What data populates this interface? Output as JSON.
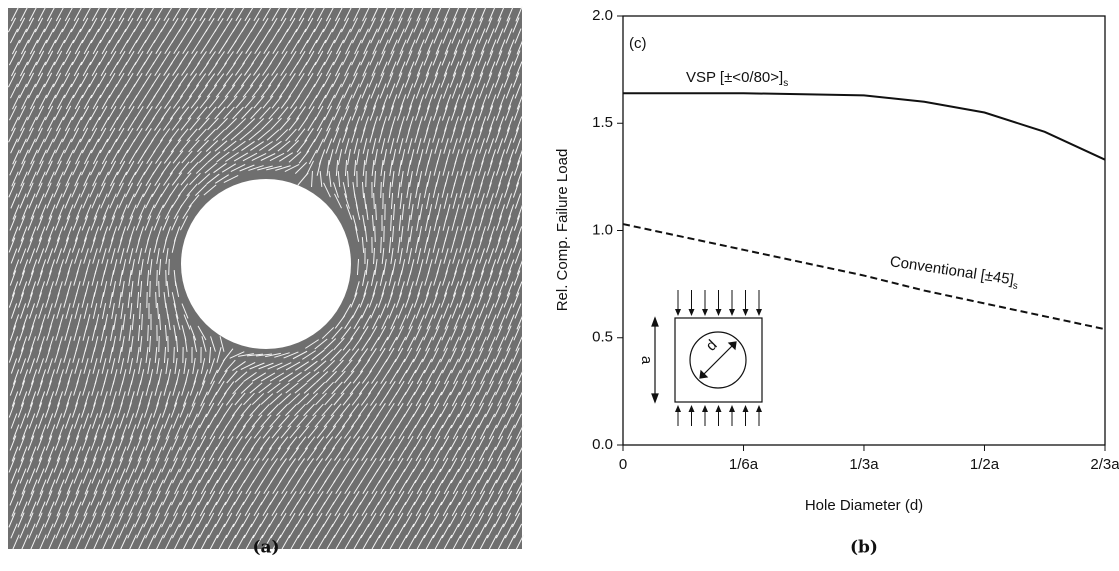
{
  "captions": [
    "(a)",
    "(b)"
  ],
  "chart_data": {
    "type": "line",
    "annotation": "(c)",
    "xlabel": "Hole Diameter (d)",
    "ylabel": "Rel. Comp. Failure Load",
    "x": [
      0,
      0.0833,
      0.1667,
      0.25,
      0.3333,
      0.4167,
      0.5,
      0.5833,
      0.6667
    ],
    "xlim": [
      0,
      0.6667
    ],
    "xticks": [
      0,
      {
        "value": 0.1667,
        "label": "1/6a"
      },
      {
        "value": 0.3333,
        "label": "1/3a"
      },
      {
        "value": 0.5,
        "label": "1/2a"
      },
      {
        "value": 0.6667,
        "label": "2/3a"
      }
    ],
    "ylim": [
      0,
      2
    ],
    "yticks": [
      {
        "value": 0,
        "label": "0.0"
      },
      0.5,
      {
        "value": 1,
        "label": "1.0"
      },
      1.5,
      {
        "value": 2,
        "label": "2.0"
      }
    ],
    "series": [
      {
        "name": "VSP [±<0/80>]",
        "subscript": "s",
        "color": "#111111",
        "line_style": "solid",
        "values": [
          1.64,
          1.64,
          1.64,
          1.635,
          1.63,
          1.6,
          1.55,
          1.46,
          1.33
        ]
      },
      {
        "name": "Conventional [±45]",
        "subscript": "s",
        "color": "#111111",
        "line_style": "dashed",
        "values": [
          1.03,
          0.97,
          0.91,
          0.85,
          0.79,
          0.72,
          0.66,
          0.6,
          0.54
        ]
      }
    ],
    "inset_labels": [
      "a",
      "d"
    ]
  }
}
